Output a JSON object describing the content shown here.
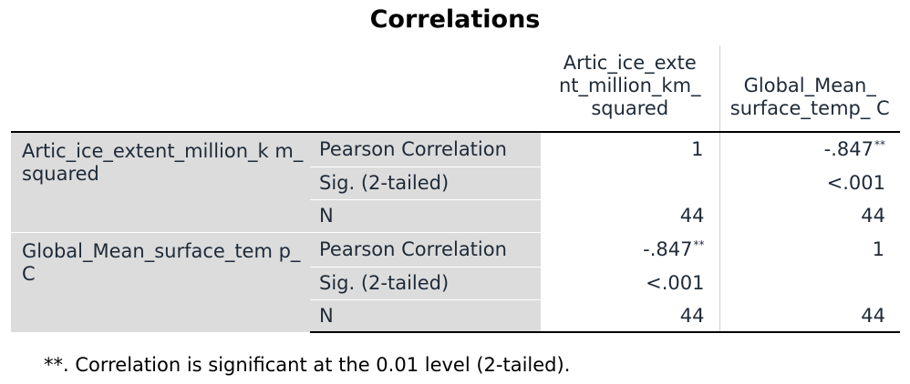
{
  "title": "Correlations",
  "columns": [
    "Artic_ice_exte nt_million_km_ squared",
    "Global_Mean_ surface_temp_ C"
  ],
  "rows": [
    {
      "label": "Artic_ice_extent_million_k m_squared",
      "pearson_label": "Pearson Correlation",
      "pearson": [
        "1",
        "-.847"
      ],
      "pearson_marks": [
        "",
        "**"
      ],
      "sig_label": "Sig. (2-tailed)",
      "sig": [
        "",
        "<.001"
      ],
      "n_label": "N",
      "n": [
        "44",
        "44"
      ]
    },
    {
      "label": "Global_Mean_surface_tem p_C",
      "pearson_label": "Pearson Correlation",
      "pearson": [
        "-.847",
        "1"
      ],
      "pearson_marks": [
        "**",
        ""
      ],
      "sig_label": "Sig. (2-tailed)",
      "sig": [
        "<.001",
        ""
      ],
      "n_label": "N",
      "n": [
        "44",
        "44"
      ]
    }
  ],
  "footnote": "**. Correlation is significant at the 0.01 level (2-tailed)."
}
